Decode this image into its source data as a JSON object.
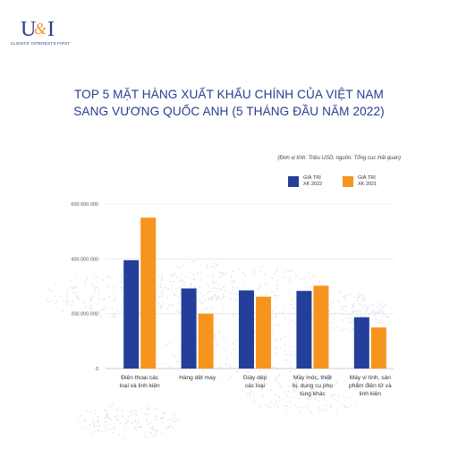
{
  "logo": {
    "caption": "CLIENTS' INTERESTS FIRST",
    "letters": "U&I"
  },
  "title": {
    "line1": "TOP 5 MẶT HÀNG XUẤT KHẨU CHÍNH CỦA VIỆT NAM",
    "line2": "SANG VƯƠNG QUỐC ANH (5 THÁNG ĐẦU NĂM 2022)"
  },
  "unit_note": "(Đơn vị tính: Triệu USD, nguồn: Tổng cục Hải quan)",
  "colors": {
    "accent": "#273d8f",
    "series_2022": "#233f9a",
    "series_2021": "#f7941d"
  },
  "chart_data": {
    "type": "bar",
    "title": "TOP 5 MẶT HÀNG XUẤT KHẨU CHÍNH CỦA VIỆT NAM SANG VƯƠNG QUỐC ANH (5 THÁNG ĐẦU NĂM 2022)",
    "xlabel": "",
    "ylabel": "",
    "ylim": [
      0,
      600000000
    ],
    "yticks": [
      0,
      200000000,
      400000000,
      600000000
    ],
    "ytick_labels": [
      "0",
      "200.000.000",
      "400.000.000",
      "600.000.000"
    ],
    "grid": true,
    "legend_position": "top-right",
    "categories": [
      [
        "Điện thoại các",
        "loại và linh kiện"
      ],
      [
        "Hàng dệt may"
      ],
      [
        "Giày dép",
        "các loại"
      ],
      [
        "Máy móc, thiết",
        "bị, dụng cụ phụ",
        "tùng khác"
      ],
      [
        "Máy vi tính, sản",
        "phẩm điện tử và",
        "linh kiện"
      ]
    ],
    "series": [
      {
        "name_line1": "GIÁ TRỊ",
        "name_line2": "XK 2022",
        "color": "#233f9a",
        "values": [
          395000000,
          292000000,
          285000000,
          283000000,
          187000000
        ]
      },
      {
        "name_line1": "GIÁ TRỊ",
        "name_line2": "XK 2021",
        "color": "#f7941d",
        "values": [
          550000000,
          200000000,
          262000000,
          302000000,
          150000000
        ]
      }
    ]
  }
}
